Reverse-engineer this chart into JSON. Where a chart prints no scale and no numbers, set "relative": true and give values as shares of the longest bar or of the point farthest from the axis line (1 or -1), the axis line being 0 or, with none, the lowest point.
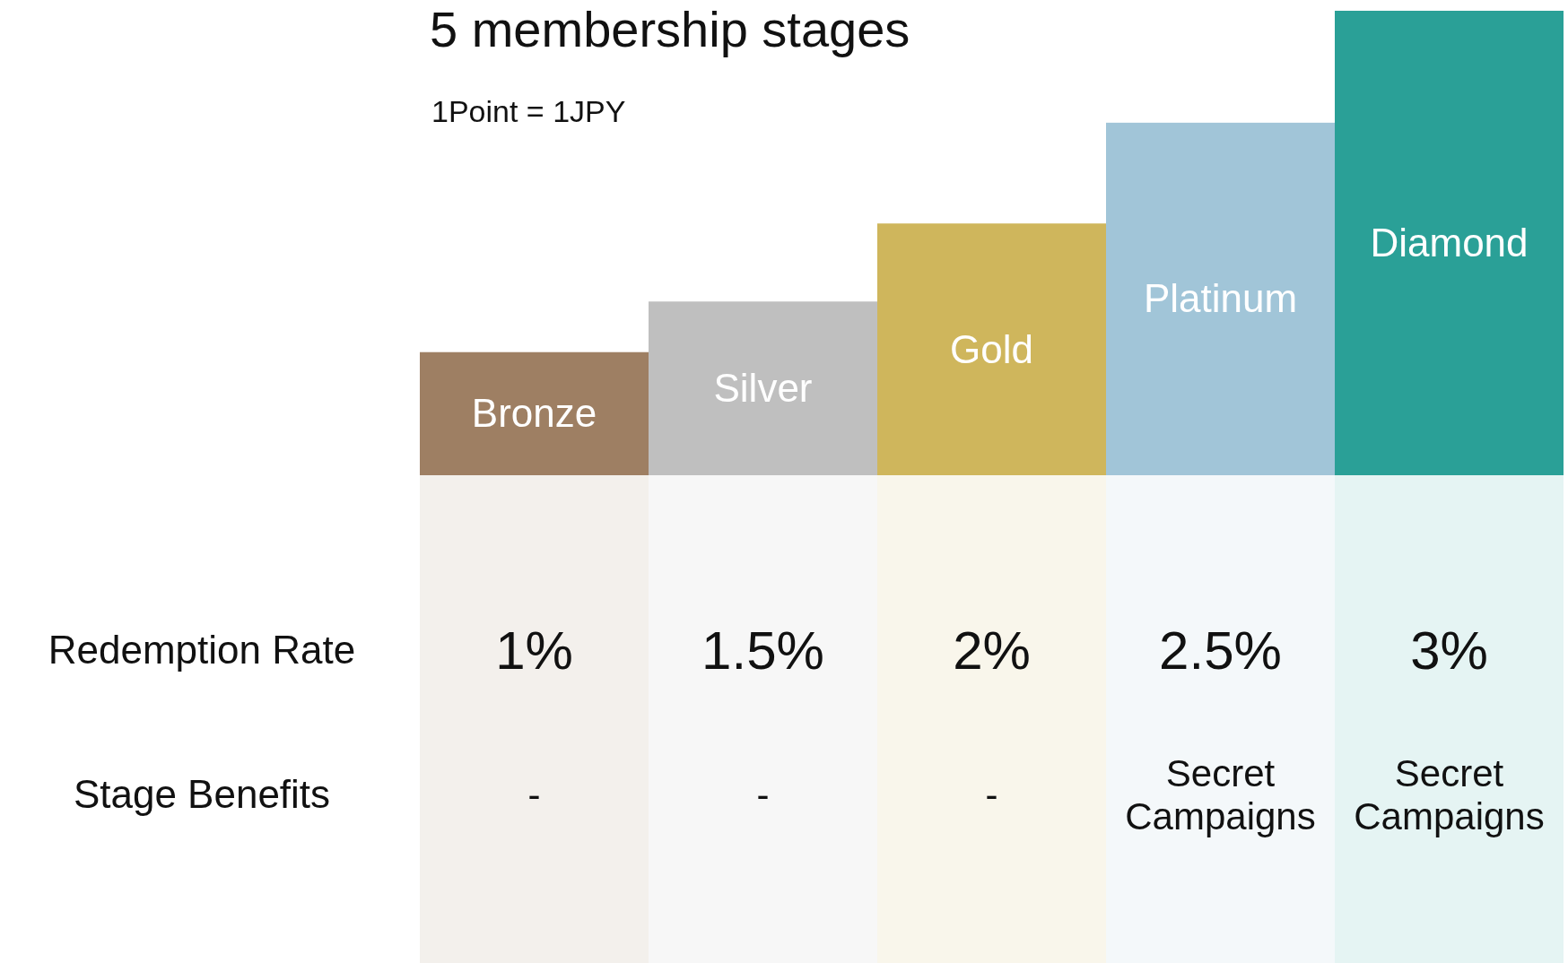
{
  "chart_data": {
    "type": "bar",
    "title": "5 membership stages",
    "subtitle": "1Point = 1JPY",
    "relative": true,
    "categories": [
      "Bronze",
      "Silver",
      "Gold",
      "Platinum",
      "Diamond"
    ],
    "values": [
      0.265,
      0.374,
      0.542,
      0.759,
      1
    ],
    "colors": [
      "#9e7f63",
      "#bfbfbf",
      "#cfb65c",
      "#a1c5d8",
      "#2aa097"
    ],
    "annotations": [
      "Redemption Rate",
      "1%",
      "1.5%",
      "2%",
      "2.5%",
      "3%",
      "Stage Benefits",
      "-",
      "-",
      "-",
      "Secret Campaigns",
      "Secret Campaigns"
    ]
  }
}
